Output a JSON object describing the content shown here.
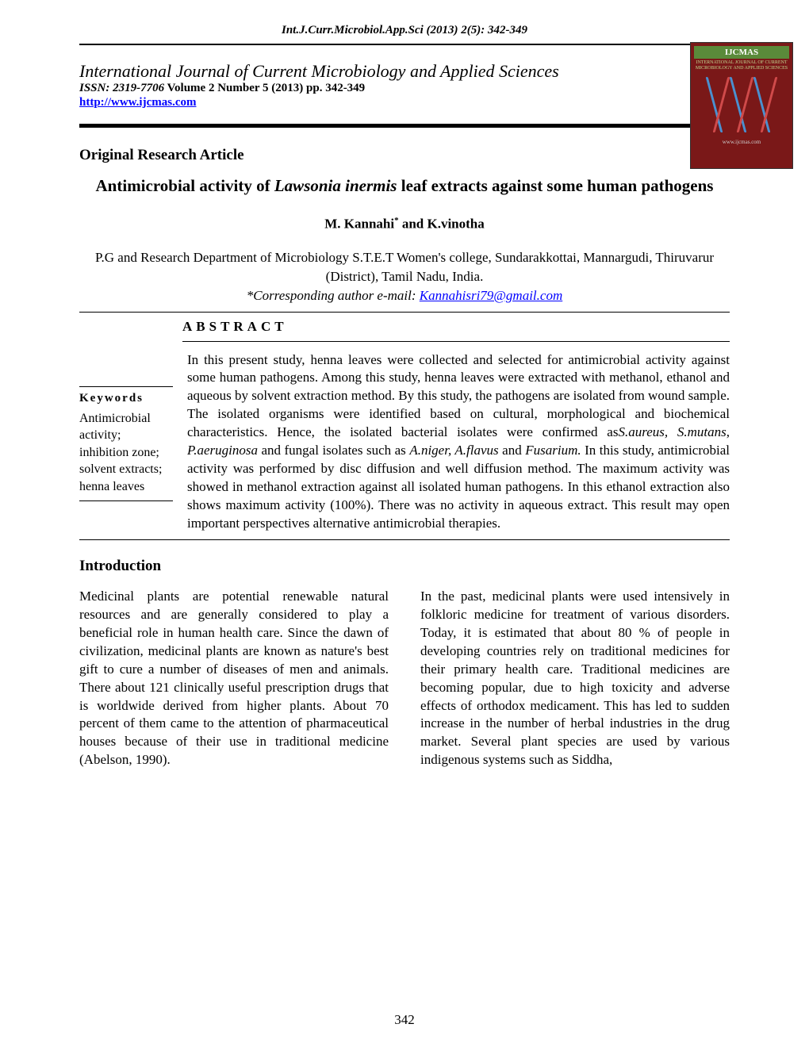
{
  "header": {
    "citation": "Int.J.Curr.Microbiol.App.Sci (2013) 2(5): 342-349",
    "journal_name": "International Journal of Current Microbiology and Applied Sciences",
    "issn_prefix": "ISSN: 2319-7706",
    "volume_info": " Volume 2 Number 5 (2013) pp. 342-349",
    "url": "http://www.ijcmas.com",
    "logo_label": "IJCMAS",
    "logo_url": "www.ijcmas.com"
  },
  "article": {
    "type": "Original Research Article",
    "title_pre": "Antimicrobial activity of ",
    "title_species": "Lawsonia inermis",
    "title_post": " leaf extracts against some human pathogens",
    "authors": "M. Kannahi* and K.vinotha",
    "affiliation": "P.G and Research Department of Microbiology S.T.E.T Women's college,  Sundarakkottai, Mannargudi, Thiruvarur (District), Tamil Nadu, India.",
    "corresponding_label": "*Corresponding author e-mail: ",
    "corresponding_email": "Kannahisri79@gmail.com"
  },
  "abstract": {
    "label": "ABSTRACT",
    "keywords_label": "Keywords",
    "keywords": "Antimicrobial activity; inhibition zone; solvent extracts; henna leaves",
    "text_1": "In this present study, henna leaves were collected and selected for antimicrobial activity against some human pathogens. Among this study, henna leaves were extracted with methanol, ethanol and aqueous by solvent extraction method. By this study, the pathogens are isolated from wound sample. The isolated organisms were identified based on cultural, morphological and biochemical characteristics. Hence, the isolated bacterial isolates were confirmed as",
    "species_1": "S.aureus, S.mutans",
    "text_2": ", ",
    "species_2": "P.aeruginosa",
    "text_3": " and fungal isolates such as ",
    "species_3": "A.niger, A.flavus",
    "text_4": " and ",
    "species_4": "Fusarium.",
    "text_5": " In this study, antimicrobial activity was performed by disc diffusion and well diffusion method. The maximum activity was showed in methanol extraction against all isolated human pathogens. In this ethanol extraction also shows maximum activity (100%). There was no activity in aqueous extract. This result may open important perspectives alternative antimicrobial therapies."
  },
  "introduction": {
    "heading": "Introduction",
    "col1": "Medicinal plants are potential renewable natural resources and are generally considered to play a beneficial role in human health care. Since the dawn of civilization, medicinal plants are known as nature's best gift to cure a number of diseases of men and animals. There about 121 clinically useful prescription drugs that is worldwide derived from higher plants. About 70 percent of them came to the attention of pharmaceutical houses because of their use in traditional medicine (Abelson, 1990).",
    "col2": "In the past, medicinal plants were used intensively in folkloric medicine for treatment of various disorders. Today, it is estimated that about 80 % of people in developing countries rely on traditional medicines for their primary health care. Traditional medicines are becoming popular, due to high toxicity and adverse effects of orthodox medicament. This has led to sudden increase in the number of herbal industries in the drug market. Several plant species are used by various indigenous systems such as Siddha,"
  },
  "page_number": "342",
  "colors": {
    "link": "#0000ff",
    "logo_bg": "#7a1818",
    "logo_label_bg": "#5a8a3a",
    "text": "#000000",
    "background": "#ffffff"
  },
  "typography": {
    "body_font": "Times New Roman",
    "journal_name_font": "Monotype Corsiva",
    "title_fontsize": 21,
    "heading_fontsize": 19,
    "body_fontsize": 17
  }
}
